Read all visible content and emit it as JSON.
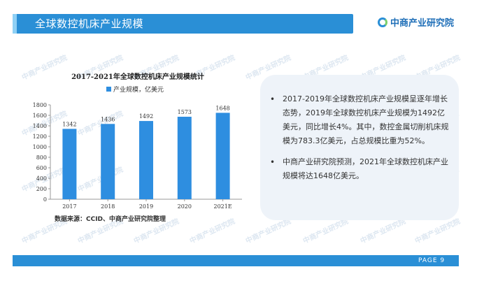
{
  "header": {
    "title": "全球数控机床产业规模"
  },
  "brand": {
    "name": "中商产业研究院"
  },
  "chart_data": {
    "type": "bar",
    "title": "2017-2021年全球数控机床产业规模统计",
    "categories": [
      "2017",
      "2018",
      "2019",
      "2020",
      "2021E"
    ],
    "series": [
      {
        "name": "产业规模，亿美元",
        "values": [
          1342,
          1436,
          1492,
          1573,
          1648
        ]
      }
    ],
    "ylim": [
      0,
      1800
    ],
    "yticks": [
      0,
      200,
      400,
      600,
      800,
      1000,
      1200,
      1400,
      1600,
      1800
    ],
    "legend": "top-center",
    "grid": false,
    "color": "#2e8ee0"
  },
  "source_text": "数据来源：CCID、中商产业研究院整理",
  "bullets": [
    "2017-2019年全球数控机床产业规模呈逐年增长态势，2019年全球数控机床产业规模为1492亿美元，同比增长4%。其中，数控金属切削机床规模为783.3亿美元，占总规模比重为52%。",
    "中商产业研究院预测，2021年全球数控机床产业规模将达1648亿美元。"
  ],
  "footer": {
    "page_label": "PAGE 9"
  },
  "watermark": "中商产业研究院"
}
